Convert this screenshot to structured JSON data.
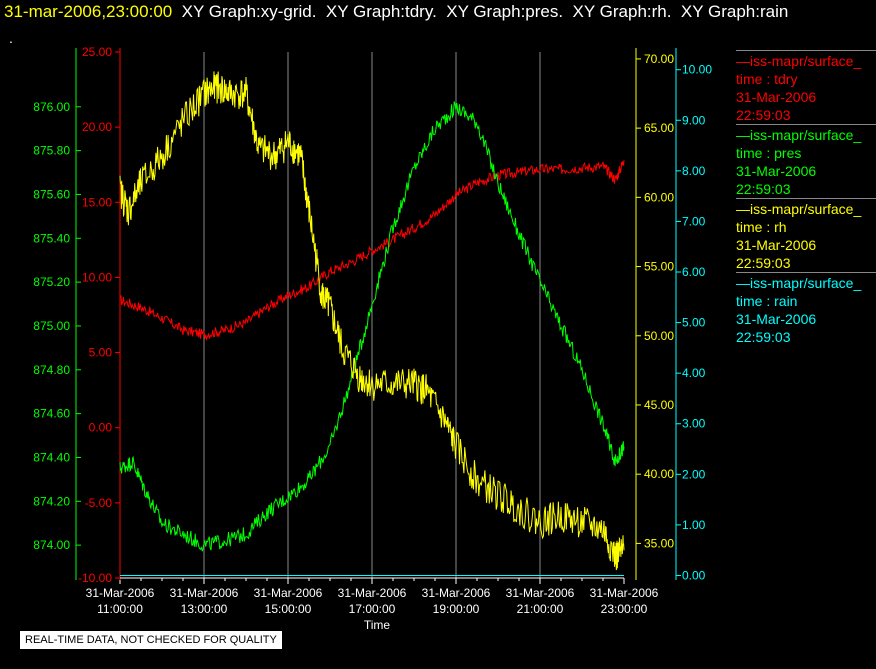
{
  "header": {
    "timestamp": "31-mar-2006,23:00:00",
    "titles": [
      "XY Graph:xy-grid.",
      "XY Graph:tdry.",
      "XY Graph:pres.",
      "XY Graph:rh.",
      "XY Graph:rain"
    ]
  },
  "disclaimer": "REAL-TIME DATA, NOT CHECKED FOR QUALITY",
  "legend": [
    {
      "name": "iss-mapr/surface_",
      "var": "time : tdry",
      "date": "31-Mar-2006",
      "time": "22:59:03",
      "color": "#ff0000"
    },
    {
      "name": "iss-mapr/surface_",
      "var": "time : pres",
      "date": "31-Mar-2006",
      "time": "22:59:03",
      "color": "#00ff00"
    },
    {
      "name": "iss-mapr/surface_",
      "var": "time : rh",
      "date": "31-Mar-2006",
      "time": "22:59:03",
      "color": "#ffff00"
    },
    {
      "name": "iss-mapr/surface_",
      "var": "time : rain",
      "date": "31-Mar-2006",
      "time": "22:59:03",
      "color": "#00ffff"
    }
  ],
  "chart_data": {
    "type": "line",
    "xlabel": "Time",
    "x_ticks": [
      {
        "date": "31-Mar-2006",
        "time": "11:00:00"
      },
      {
        "date": "31-Mar-2006",
        "time": "13:00:00"
      },
      {
        "date": "31-Mar-2006",
        "time": "15:00:00"
      },
      {
        "date": "31-Mar-2006",
        "time": "17:00:00"
      },
      {
        "date": "31-Mar-2006",
        "time": "19:00:00"
      },
      {
        "date": "31-Mar-2006",
        "time": "21:00:00"
      },
      {
        "date": "31-Mar-2006",
        "time": "23:00:00"
      }
    ],
    "xlim_hours": [
      11,
      23
    ],
    "grid": "vertical",
    "axes": {
      "tdry": {
        "color": "#ff0000",
        "ylim": [
          -10,
          25
        ],
        "ticks": [
          "25.00",
          "20.00",
          "15.00",
          "10.00",
          "5.00",
          "0.00",
          "-5.00",
          "-10.00"
        ]
      },
      "pres": {
        "color": "#00ff00",
        "ylim": [
          873.85,
          876.25
        ],
        "ticks": [
          "876.00",
          "875.80",
          "875.60",
          "875.40",
          "875.20",
          "875.00",
          "874.80",
          "874.60",
          "874.40",
          "874.20",
          "874.00"
        ]
      },
      "rh": {
        "color": "#ffff00",
        "ylim": [
          32.5,
          70.5
        ],
        "ticks": [
          "70.00",
          "65.00",
          "60.00",
          "55.00",
          "50.00",
          "45.00",
          "40.00",
          "35.00"
        ]
      },
      "rain": {
        "color": "#00ffff",
        "ylim": [
          -0.05,
          10.35
        ],
        "ticks": [
          "10.00",
          "9.00",
          "8.00",
          "7.00",
          "6.00",
          "5.00",
          "4.00",
          "3.00",
          "2.00",
          "1.00",
          "0.00"
        ]
      }
    },
    "series": [
      {
        "name": "tdry",
        "axis": "tdry",
        "color": "#ff0000",
        "x": [
          11.0,
          11.5,
          12.0,
          12.5,
          13.0,
          13.5,
          14.0,
          14.5,
          15.0,
          15.5,
          16.0,
          16.5,
          17.0,
          17.5,
          18.0,
          18.5,
          19.0,
          19.5,
          20.0,
          20.5,
          21.0,
          21.5,
          22.0,
          22.5,
          22.8,
          23.0
        ],
        "y": [
          8.5,
          8.0,
          7.3,
          6.5,
          6.2,
          6.5,
          7.0,
          8.0,
          8.8,
          9.4,
          10.4,
          11.0,
          11.8,
          12.5,
          13.3,
          14.2,
          15.5,
          16.3,
          16.8,
          17.0,
          17.2,
          17.2,
          17.3,
          17.4,
          16.5,
          17.8
        ]
      },
      {
        "name": "pres",
        "axis": "pres",
        "color": "#00ff00",
        "x": [
          11.0,
          11.3,
          11.6,
          12.0,
          12.5,
          13.0,
          13.5,
          14.0,
          14.5,
          15.0,
          15.5,
          16.0,
          16.5,
          17.0,
          17.5,
          18.0,
          18.5,
          19.0,
          19.5,
          20.0,
          20.5,
          21.0,
          21.5,
          22.0,
          22.5,
          22.8,
          23.0
        ],
        "y": [
          874.35,
          874.38,
          874.25,
          874.1,
          874.05,
          874.0,
          874.02,
          874.05,
          874.15,
          874.22,
          874.3,
          874.45,
          874.75,
          875.1,
          875.45,
          875.72,
          875.9,
          876.0,
          875.93,
          875.65,
          875.42,
          875.2,
          875.0,
          874.8,
          874.55,
          874.38,
          874.45
        ]
      },
      {
        "name": "rh",
        "axis": "rh",
        "color": "#ffff00",
        "x": [
          11.0,
          11.2,
          11.5,
          12.0,
          12.5,
          13.0,
          13.3,
          13.6,
          14.0,
          14.3,
          14.7,
          15.0,
          15.3,
          15.5,
          15.8,
          16.0,
          16.3,
          16.7,
          17.0,
          17.5,
          18.0,
          18.3,
          18.7,
          19.0,
          19.5,
          20.0,
          20.5,
          21.0,
          21.5,
          22.0,
          22.5,
          22.8,
          23.0
        ],
        "y": [
          60.5,
          59.0,
          61.0,
          63.0,
          65.5,
          67.5,
          68.0,
          67.5,
          67.5,
          63.5,
          63.0,
          64.0,
          63.0,
          59.0,
          53.0,
          52.0,
          49.0,
          47.0,
          46.5,
          46.5,
          46.5,
          46.0,
          44.0,
          42.0,
          39.5,
          38.5,
          37.5,
          36.5,
          37.0,
          36.5,
          36.0,
          34.0,
          34.5
        ]
      },
      {
        "name": "rain",
        "axis": "rain",
        "color": "#00ffff",
        "x": [
          11.0,
          23.0
        ],
        "y": [
          0.0,
          0.0
        ]
      }
    ]
  }
}
